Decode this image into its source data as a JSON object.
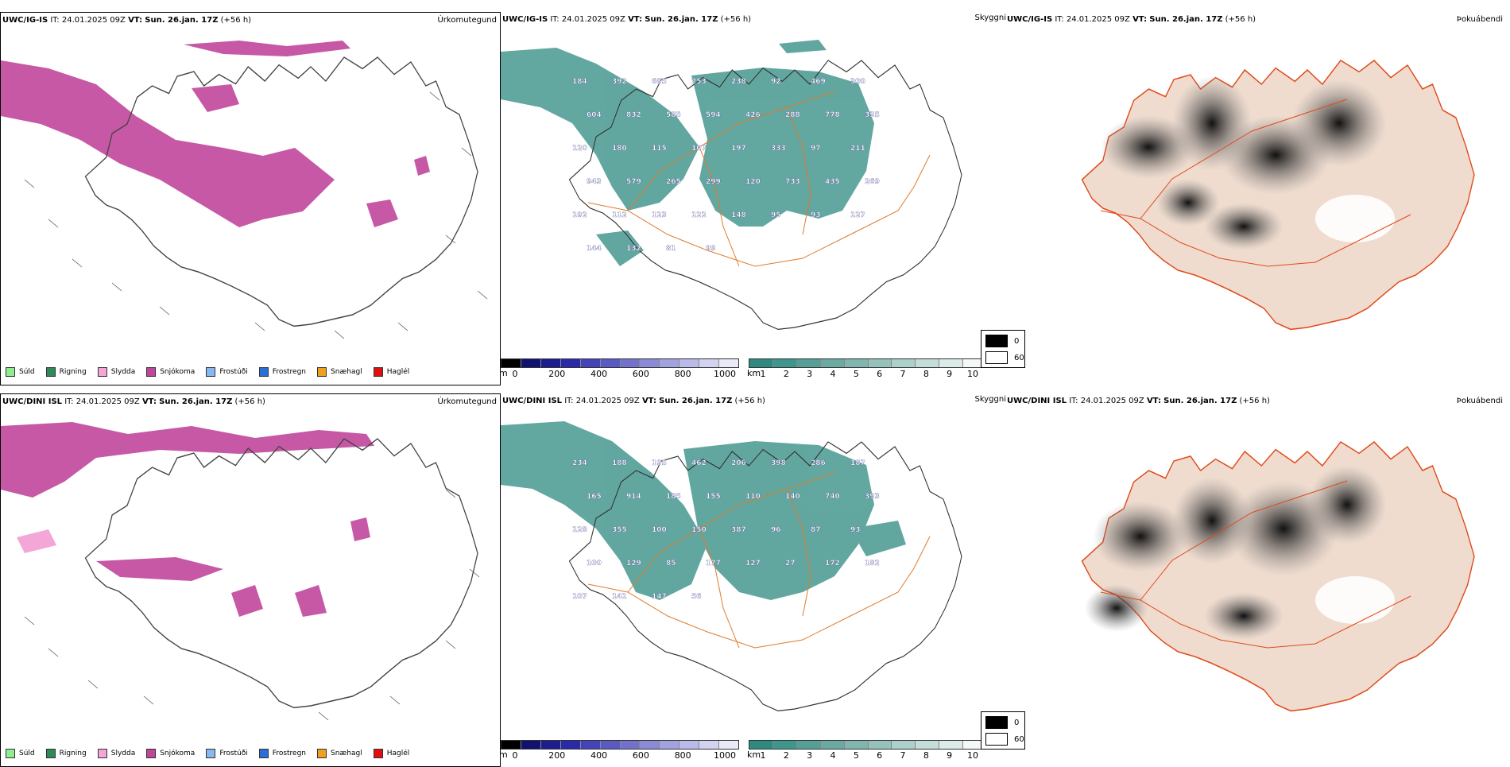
{
  "rows": [
    {
      "model": "UWC/IG-IS",
      "it_label": "IT:",
      "it_value": "24.01.2025 09Z",
      "vt_label": "VT:",
      "vt_value": "Sun. 26.jan. 17Z",
      "lead": "(+56 h)",
      "labels": [
        "184",
        "392",
        "685",
        "253",
        "238",
        "92",
        "469",
        "300",
        "604",
        "832",
        "585",
        "594",
        "426",
        "288",
        "778",
        "335",
        "120",
        "180",
        "115",
        "107",
        "197",
        "333",
        "97",
        "211",
        "943",
        "579",
        "265",
        "299",
        "120",
        "733",
        "435",
        "269",
        "192",
        "112",
        "123",
        "122",
        "148",
        "95",
        "93",
        "127",
        "144",
        "132",
        "81",
        "99"
      ]
    },
    {
      "model": "UWC/DINI ISL",
      "it_label": "IT:",
      "it_value": "24.01.2025 09Z",
      "vt_label": "VT:",
      "vt_value": "Sun. 26.jan. 17Z",
      "lead": "(+56 h)",
      "labels": [
        "234",
        "188",
        "195",
        "462",
        "206",
        "398",
        "286",
        "187",
        "165",
        "914",
        "185",
        "155",
        "110",
        "140",
        "740",
        "393",
        "128",
        "355",
        "100",
        "150",
        "387",
        "96",
        "87",
        "93",
        "100",
        "129",
        "85",
        "177",
        "127",
        "27",
        "172",
        "182",
        "107",
        "141",
        "147",
        "56"
      ]
    }
  ],
  "panel_titles": {
    "precip_type": "Úrkomutegund",
    "visibility": "Skyggni",
    "fog": "Þokuábendi"
  },
  "precip_legend": [
    {
      "label": "Súld",
      "color": "#90ee90"
    },
    {
      "label": "Rigning",
      "color": "#2e8b57"
    },
    {
      "label": "Slydda",
      "color": "#f4a6d7"
    },
    {
      "label": "Snjókoma",
      "color": "#c0469c"
    },
    {
      "label": "Frostúði",
      "color": "#87b8f0"
    },
    {
      "label": "Frostregn",
      "color": "#2a6fd6"
    },
    {
      "label": "Snæhagl",
      "color": "#f0a020"
    },
    {
      "label": "Haglél",
      "color": "#e01010"
    }
  ],
  "height_scale": {
    "unit": "m",
    "ticks": [
      "0",
      "200",
      "400",
      "600",
      "800",
      "1000"
    ],
    "colors": [
      "#000000",
      "#111170",
      "#1d1d90",
      "#2a2aa8",
      "#4444b8",
      "#5a5ac4",
      "#7272cc",
      "#8a8ad6",
      "#a2a2e0",
      "#babaea",
      "#d2d2f2",
      "#eaeaf8"
    ]
  },
  "vis_scale": {
    "unit": "km",
    "ticks": [
      "1",
      "2",
      "3",
      "4",
      "5",
      "6",
      "7",
      "8",
      "9",
      "10"
    ],
    "colors": [
      "#2e8a80",
      "#3f968c",
      "#559f96",
      "#6aaaa2",
      "#80b6ae",
      "#96c2bb",
      "#acd0ca",
      "#c4ddd8",
      "#dcebe8",
      "#f4f8f7"
    ]
  },
  "fog_legend": {
    "max": "0",
    "min": "60",
    "max_color": "#000000",
    "min_color": "#ffffff"
  }
}
